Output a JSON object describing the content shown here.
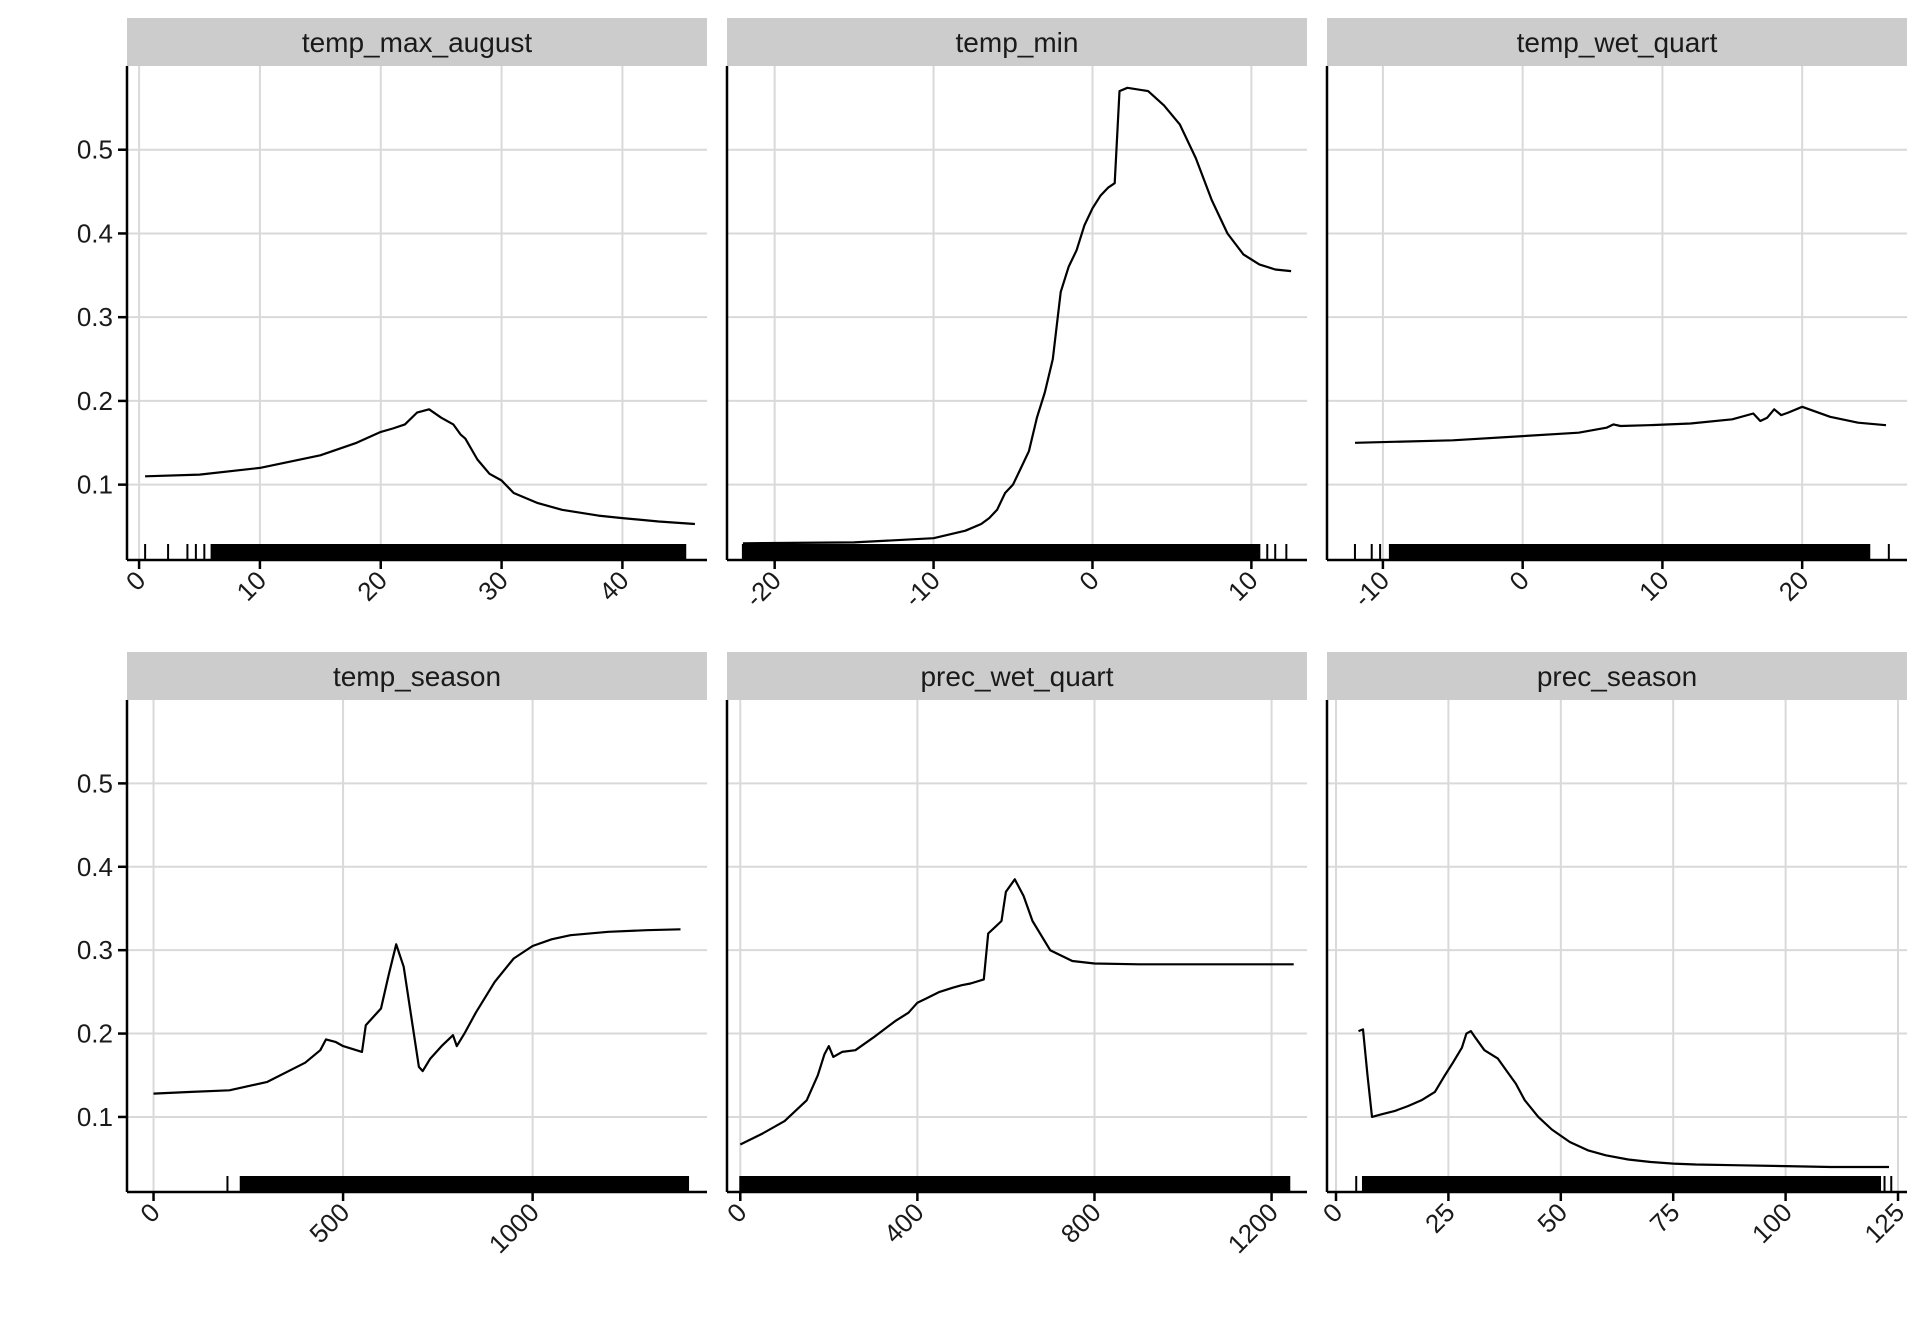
{
  "chart_data": {
    "type": "line",
    "layout": "facet-grid",
    "rows": 2,
    "cols": 3,
    "shared_y": true,
    "grid": true,
    "ylim": [
      0.01,
      0.6
    ],
    "y_ticks": [
      0.1,
      0.2,
      0.3,
      0.4,
      0.5
    ],
    "y_tick_labels": [
      "0.1",
      "0.2",
      "0.3",
      "0.4",
      "0.5"
    ],
    "x_tick_rotation": -45,
    "rug": true,
    "colors": {
      "line": "#000000",
      "strip": "#cccccc",
      "grid": "#d9d9d9"
    },
    "panels": [
      {
        "title": "temp_max_august",
        "xlim": [
          -1,
          47
        ],
        "x_ticks": [
          0,
          10,
          20,
          30,
          40
        ],
        "x_tick_labels": [
          "0",
          "10",
          "20",
          "30",
          "40"
        ],
        "rug_range": [
          6,
          45.2
        ],
        "rug_outliers": [
          0.5,
          2.4,
          4,
          4.7,
          5.4
        ],
        "x": [
          0.5,
          5,
          10,
          15,
          18,
          20,
          21,
          22,
          23,
          24,
          25,
          26,
          26.6,
          27,
          28,
          29,
          30,
          31,
          33,
          35,
          38,
          40,
          43,
          46
        ],
        "y": [
          0.11,
          0.112,
          0.12,
          0.135,
          0.15,
          0.163,
          0.167,
          0.172,
          0.186,
          0.19,
          0.18,
          0.172,
          0.16,
          0.155,
          0.13,
          0.113,
          0.105,
          0.09,
          0.078,
          0.07,
          0.063,
          0.06,
          0.056,
          0.053
        ]
      },
      {
        "title": "temp_min",
        "xlim": [
          -23,
          13.5
        ],
        "x_ticks": [
          -20,
          -10,
          0,
          10
        ],
        "x_tick_labels": [
          "-20",
          "-10",
          "0",
          "10"
        ],
        "rug_range": [
          -22,
          10.5
        ],
        "rug_outliers": [
          11,
          11.5,
          12.2
        ],
        "x": [
          -22,
          -15,
          -10,
          -8,
          -7,
          -6.5,
          -6,
          -5.5,
          -5,
          -4.5,
          -4,
          -3.5,
          -3,
          -2.5,
          -2,
          -1.5,
          -1,
          -0.5,
          0,
          0.5,
          1,
          1.4,
          1.7,
          2.2,
          3.5,
          4.5,
          5.5,
          6.5,
          7.5,
          8.5,
          9.5,
          10.5,
          11.5,
          12.5
        ],
        "y": [
          0.03,
          0.031,
          0.036,
          0.045,
          0.053,
          0.06,
          0.07,
          0.09,
          0.1,
          0.12,
          0.14,
          0.18,
          0.21,
          0.25,
          0.33,
          0.36,
          0.38,
          0.41,
          0.43,
          0.445,
          0.455,
          0.46,
          0.57,
          0.574,
          0.57,
          0.553,
          0.53,
          0.49,
          0.44,
          0.4,
          0.375,
          0.363,
          0.357,
          0.355
        ]
      },
      {
        "title": "temp_wet_quart",
        "xlim": [
          -14,
          27.5
        ],
        "x_ticks": [
          -10,
          0,
          10,
          20
        ],
        "x_tick_labels": [
          "-10",
          "0",
          "10",
          "20"
        ],
        "rug_range": [
          -9.5,
          24.8
        ],
        "rug_outliers": [
          -12,
          -10.8,
          -10.2,
          26.2
        ],
        "x": [
          -12,
          -5,
          0,
          4,
          6,
          6.5,
          7,
          9,
          12,
          15,
          16.5,
          17,
          17.5,
          18,
          18.5,
          19,
          20,
          22,
          24,
          26
        ],
        "y": [
          0.15,
          0.153,
          0.158,
          0.162,
          0.168,
          0.172,
          0.17,
          0.171,
          0.173,
          0.178,
          0.185,
          0.176,
          0.18,
          0.19,
          0.183,
          0.186,
          0.193,
          0.181,
          0.174,
          0.171
        ]
      },
      {
        "title": "temp_season",
        "xlim": [
          -70,
          1460
        ],
        "x_ticks": [
          0,
          500,
          1000
        ],
        "x_tick_labels": [
          "0",
          "500",
          "1000"
        ],
        "rug_range": [
          230,
          1410
        ],
        "rug_outliers": [
          195
        ],
        "x": [
          0,
          100,
          200,
          300,
          400,
          440,
          455,
          480,
          500,
          550,
          560,
          600,
          620,
          640,
          660,
          680,
          700,
          710,
          730,
          760,
          790,
          800,
          820,
          850,
          900,
          950,
          1000,
          1050,
          1100,
          1200,
          1300,
          1390
        ],
        "y": [
          0.128,
          0.13,
          0.132,
          0.142,
          0.165,
          0.18,
          0.193,
          0.19,
          0.185,
          0.178,
          0.21,
          0.23,
          0.27,
          0.307,
          0.28,
          0.22,
          0.16,
          0.155,
          0.17,
          0.185,
          0.198,
          0.185,
          0.2,
          0.225,
          0.262,
          0.29,
          0.305,
          0.313,
          0.318,
          0.322,
          0.324,
          0.325
        ]
      },
      {
        "title": "prec_wet_quart",
        "xlim": [
          -30,
          1280
        ],
        "x_ticks": [
          0,
          400,
          800,
          1200
        ],
        "x_tick_labels": [
          "0",
          "400",
          "800",
          "1200"
        ],
        "rug_range": [
          0,
          1240
        ],
        "rug_outliers": [],
        "x": [
          0,
          50,
          100,
          150,
          175,
          190,
          200,
          210,
          230,
          260,
          300,
          350,
          380,
          400,
          420,
          450,
          480,
          500,
          520,
          550,
          560,
          580,
          590,
          600,
          620,
          640,
          660,
          700,
          750,
          800,
          900,
          1000,
          1100,
          1250
        ],
        "y": [
          0.067,
          0.08,
          0.095,
          0.12,
          0.15,
          0.175,
          0.185,
          0.172,
          0.178,
          0.18,
          0.195,
          0.215,
          0.225,
          0.237,
          0.242,
          0.25,
          0.255,
          0.258,
          0.26,
          0.265,
          0.32,
          0.33,
          0.335,
          0.37,
          0.385,
          0.365,
          0.335,
          0.3,
          0.287,
          0.284,
          0.283,
          0.283,
          0.283,
          0.283
        ]
      },
      {
        "title": "prec_season",
        "xlim": [
          -2,
          127
        ],
        "x_ticks": [
          0,
          25,
          50,
          75,
          100,
          125
        ],
        "x_tick_labels": [
          "0",
          "25",
          "50",
          "75",
          "100",
          "125"
        ],
        "rug_range": [
          6,
          121
        ],
        "rug_outliers": [
          4.5,
          122,
          123.5
        ],
        "x": [
          5,
          6,
          7,
          8,
          10,
          13,
          16,
          19,
          22,
          24,
          26,
          28,
          29,
          30,
          31,
          33,
          36,
          38,
          40,
          42,
          45,
          48,
          52,
          56,
          60,
          65,
          70,
          75,
          80,
          90,
          100,
          110,
          123
        ],
        "y": [
          0.203,
          0.205,
          0.15,
          0.1,
          0.103,
          0.107,
          0.113,
          0.12,
          0.13,
          0.148,
          0.165,
          0.183,
          0.2,
          0.203,
          0.195,
          0.18,
          0.17,
          0.155,
          0.14,
          0.12,
          0.1,
          0.085,
          0.07,
          0.06,
          0.054,
          0.049,
          0.046,
          0.044,
          0.043,
          0.042,
          0.041,
          0.04,
          0.04
        ]
      }
    ]
  }
}
